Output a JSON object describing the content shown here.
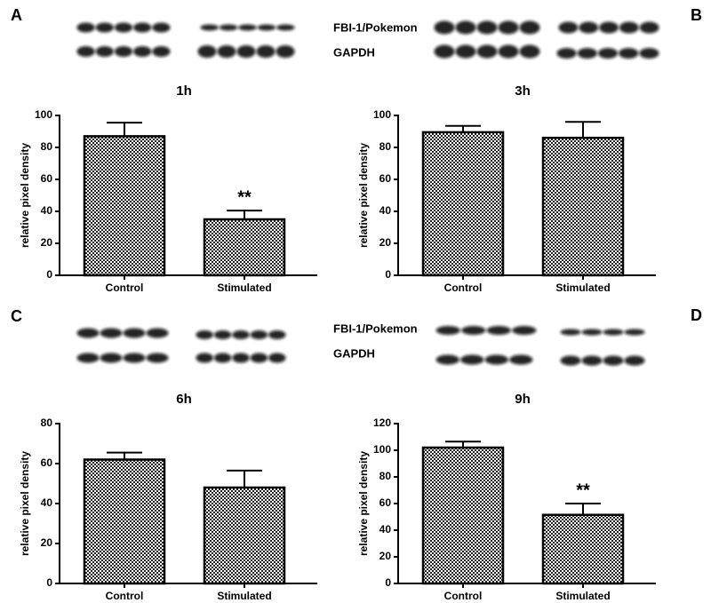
{
  "chart_data": [
    {
      "type": "bar",
      "panel": "A",
      "title": "1h",
      "ylabel": "relative pixel density",
      "categories": [
        "Control",
        "Stimulated"
      ],
      "values": [
        87,
        35
      ],
      "errors": [
        8.5,
        5.5
      ],
      "value_annotations": [
        null,
        "**"
      ],
      "ylim": [
        0,
        100
      ],
      "yticks": [
        0,
        20,
        40,
        60,
        80,
        100
      ]
    },
    {
      "type": "bar",
      "panel": "B",
      "title": "3h",
      "ylabel": "relative pixel density",
      "categories": [
        "Control",
        "Stimulated"
      ],
      "values": [
        89.5,
        86
      ],
      "errors": [
        4,
        10
      ],
      "value_annotations": [
        null,
        null
      ],
      "ylim": [
        0,
        100
      ],
      "yticks": [
        0,
        20,
        40,
        60,
        80,
        100
      ]
    },
    {
      "type": "bar",
      "panel": "C",
      "title": "6h",
      "ylabel": "relative pixel density",
      "categories": [
        "Control",
        "Stimulated"
      ],
      "values": [
        62,
        48
      ],
      "errors": [
        3.5,
        8.5
      ],
      "value_annotations": [
        null,
        null
      ],
      "ylim": [
        0,
        80
      ],
      "yticks": [
        0,
        20,
        40,
        60,
        80
      ]
    },
    {
      "type": "bar",
      "panel": "D",
      "title": "9h",
      "ylabel": "relative pixel density",
      "categories": [
        "Control",
        "Stimulated"
      ],
      "values": [
        102,
        51.5
      ],
      "errors": [
        4.5,
        8.5
      ],
      "value_annotations": [
        null,
        "**"
      ],
      "ylim": [
        0,
        120
      ],
      "yticks": [
        0,
        20,
        40,
        60,
        80,
        100,
        120
      ]
    }
  ],
  "blots": [
    {
      "labels": [
        "FBI-1/Pokemon",
        "GAPDH"
      ]
    },
    {
      "labels": [
        "FBI-1/Pokemon",
        "GAPDH"
      ]
    }
  ]
}
